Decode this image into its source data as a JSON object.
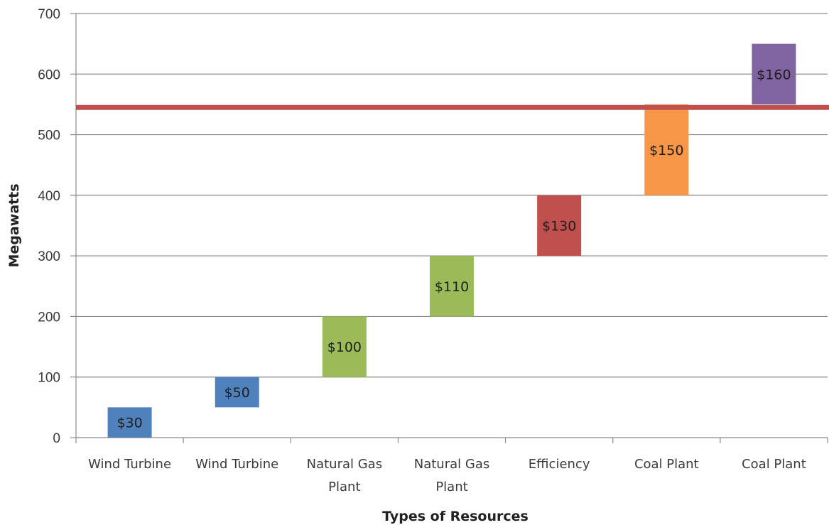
{
  "chart_data": {
    "type": "bar",
    "subtype": "floating-stacked",
    "title": "",
    "xlabel": "Types of Resources",
    "ylabel": "Megawatts",
    "ylim": [
      0,
      700
    ],
    "yticks": [
      0,
      100,
      200,
      300,
      400,
      500,
      600,
      700
    ],
    "grid": true,
    "legend": "none",
    "categories": [
      [
        "Wind Turbine"
      ],
      [
        "Wind Turbine"
      ],
      [
        "Natural Gas",
        "Plant"
      ],
      [
        "Natural Gas",
        "Plant"
      ],
      [
        "Efficiency"
      ],
      [
        "Coal Plant"
      ],
      [
        "Coal Plant"
      ]
    ],
    "bars": [
      {
        "start": 0,
        "end": 50,
        "label": "$30",
        "color": "#4f81bd"
      },
      {
        "start": 50,
        "end": 100,
        "label": "$50",
        "color": "#4f81bd"
      },
      {
        "start": 100,
        "end": 200,
        "label": "$100",
        "color": "#9bbb59"
      },
      {
        "start": 200,
        "end": 300,
        "label": "$110",
        "color": "#9bbb59"
      },
      {
        "start": 300,
        "end": 400,
        "label": "$130",
        "color": "#c0504d"
      },
      {
        "start": 400,
        "end": 550,
        "label": "$150",
        "color": "#f79646"
      },
      {
        "start": 550,
        "end": 650,
        "label": "$160",
        "color": "#8064a2"
      }
    ],
    "reference_line": {
      "value": 545,
      "color": "#c0504d"
    }
  }
}
